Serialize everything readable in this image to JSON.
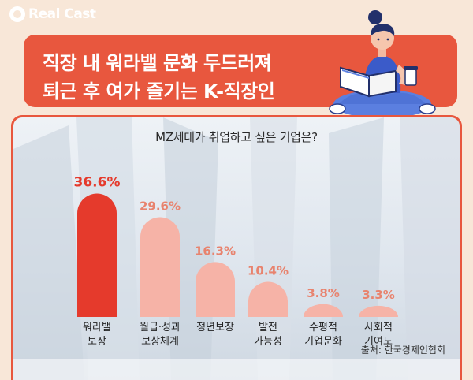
{
  "brand": {
    "name": "Real Cast"
  },
  "headline": {
    "line1": "직장 내 워라밸 문화 두드러져",
    "line2": "퇴근 후 여가 즐기는 K-직장인"
  },
  "source": "출처: 한국경제인협회",
  "colors": {
    "accent": "#e8573e",
    "bar_top": "#e53a2c",
    "bar_other": "#f6b3a7",
    "value_top": "#e53a2c",
    "value_other": "#e8836e"
  },
  "chart_data": {
    "type": "bar",
    "title": "MZ세대가 취업하고 싶은 기업은?",
    "categories": [
      "워라밸\n보장",
      "월급·성과\n보상체계",
      "정년보장",
      "발전\n가능성",
      "수평적\n기업문화",
      "사회적\n기여도"
    ],
    "values": [
      36.6,
      29.6,
      16.3,
      10.4,
      3.8,
      3.3
    ],
    "value_labels": [
      "36.6%",
      "29.6%",
      "16.3%",
      "10.4%",
      "3.8%",
      "3.3%"
    ],
    "ylim": [
      0,
      40
    ],
    "grid": false,
    "legend": "none"
  }
}
